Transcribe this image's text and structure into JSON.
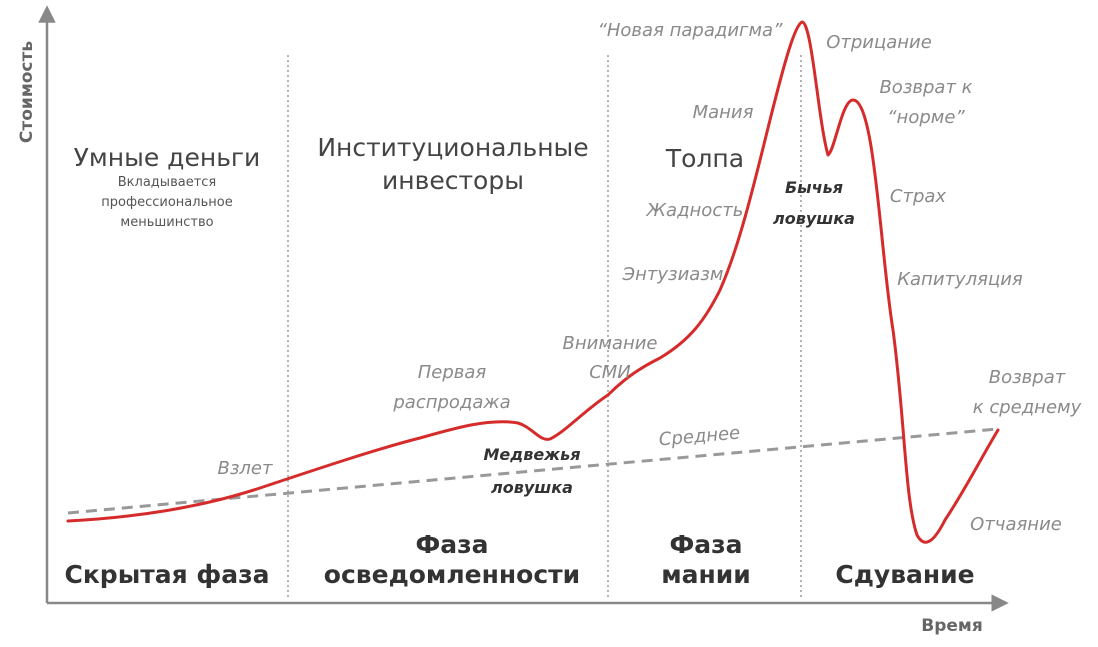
{
  "axes": {
    "y_label": "Стоимость",
    "x_label": "Время"
  },
  "groups": {
    "smart_money": "Умные деньги",
    "smart_money_sub": [
      "Вкладывается",
      "профессиональное",
      "меньшинство"
    ],
    "institutional": [
      "Институциональные",
      "инвесторы"
    ],
    "crowd": "Толпа"
  },
  "phases": {
    "stealth": "Скрытая фаза",
    "awareness": [
      "Фаза",
      "осведомленности"
    ],
    "mania": [
      "Фаза",
      "мании"
    ],
    "blowoff": "Сдувание"
  },
  "annotations": {
    "takeoff": "Взлет",
    "first_selloff": [
      "Первая",
      "распродажа"
    ],
    "bear_trap": [
      "Медвежья",
      "ловушка"
    ],
    "media": [
      "Внимание",
      "СМИ"
    ],
    "enthusiasm": "Энтузиазм",
    "greed": "Жадность",
    "mania": "Мания",
    "new_paradigm": "“Новая парадигма”",
    "denial": "Отрицание",
    "return_normal": [
      "Возврат к",
      "“норме”"
    ],
    "bull_trap": [
      "Бычья",
      "ловушка"
    ],
    "fear": "Страх",
    "capitulation": "Капитуляция",
    "despair": "Отчаяние",
    "return_mean": [
      "Возврат",
      "к среднему"
    ],
    "mean": "Среднее"
  },
  "colors": {
    "curve": "#d62b2b",
    "mean_line": "#999999",
    "axis": "#888888",
    "divider": "#9a9a9a"
  }
}
